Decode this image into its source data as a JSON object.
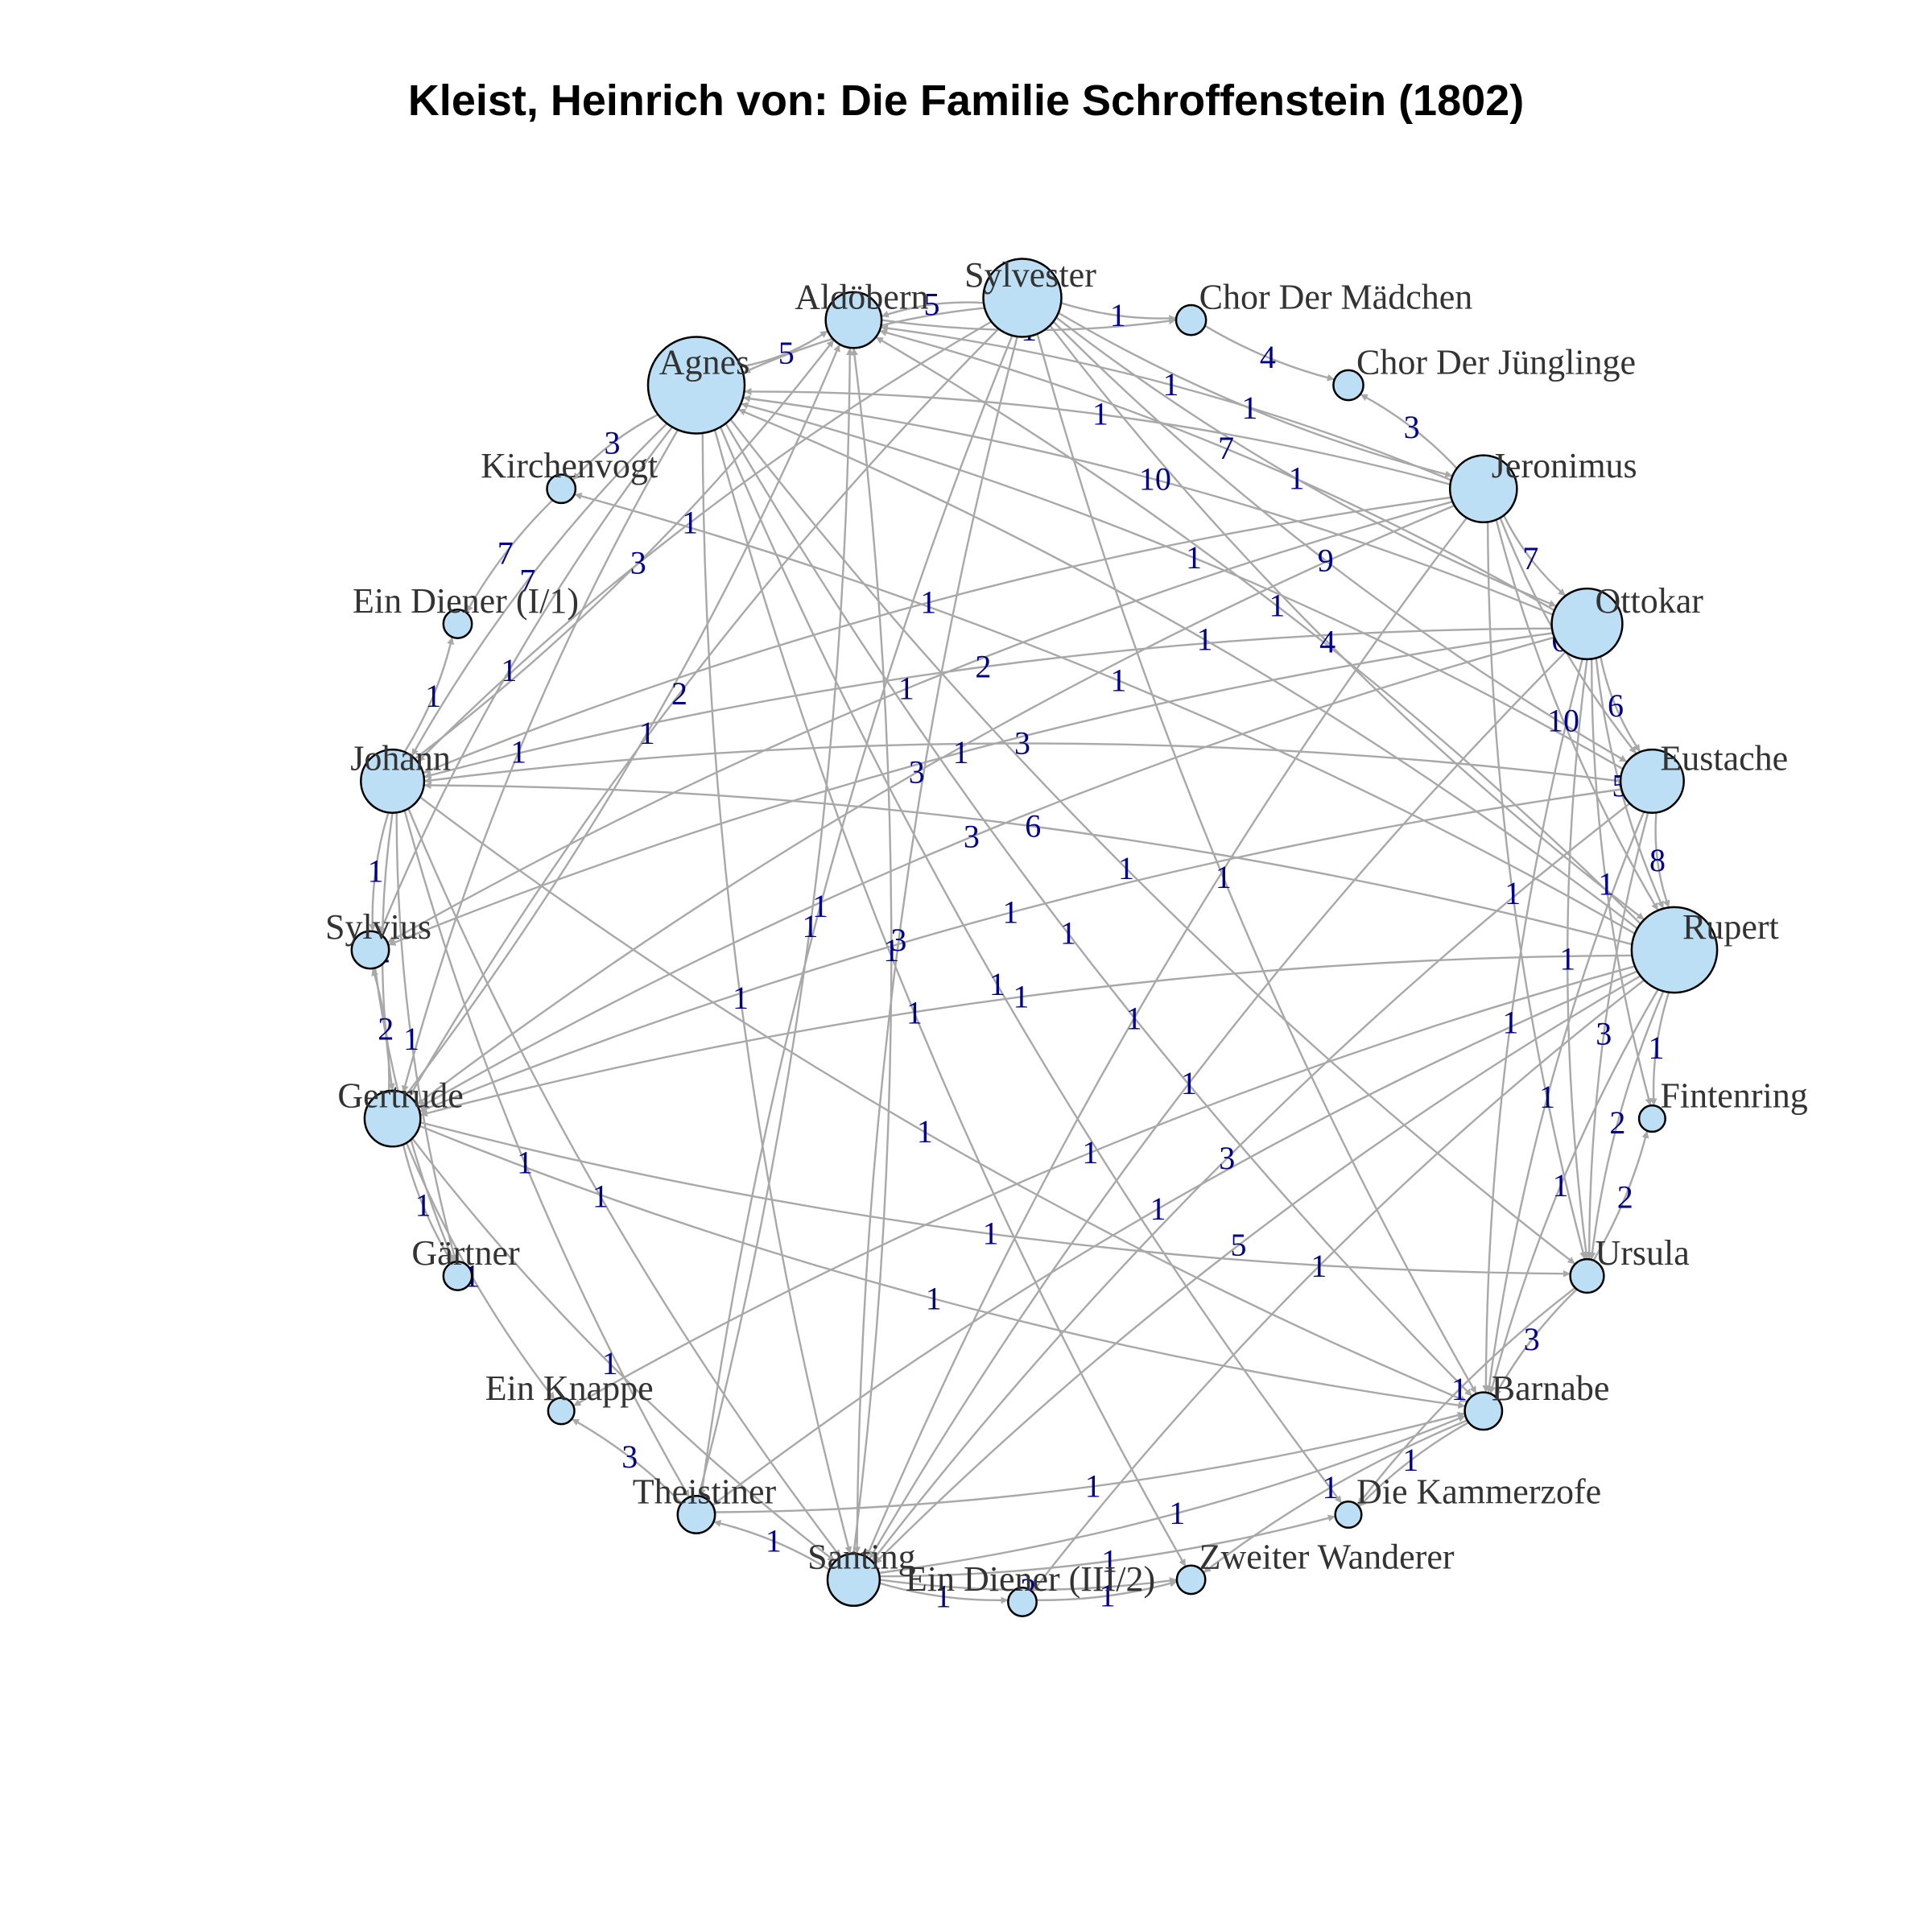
{
  "title": "Kleist, Heinrich von: Die Familie Schroffenstein (1802)",
  "nodes": [
    {
      "id": "sylvester",
      "label": "Sylvester",
      "weight": 0.75
    },
    {
      "id": "chor-maedchen",
      "label": "Chor Der Mädchen",
      "weight": 0.1
    },
    {
      "id": "chor-juenglinge",
      "label": "Chor Der Jünglinge",
      "weight": 0.1
    },
    {
      "id": "jeronimus",
      "label": "Jeronimus",
      "weight": 0.6
    },
    {
      "id": "ottokar",
      "label": "Ottokar",
      "weight": 0.65
    },
    {
      "id": "eustache",
      "label": "Eustache",
      "weight": 0.55
    },
    {
      "id": "rupert",
      "label": "Rupert",
      "weight": 0.85
    },
    {
      "id": "fintenring",
      "label": "Fintenring",
      "weight": 0.05
    },
    {
      "id": "ursula",
      "label": "Ursula",
      "weight": 0.15
    },
    {
      "id": "barnabe",
      "label": "Barnabe",
      "weight": 0.2
    },
    {
      "id": "kammerzofe",
      "label": "Die Kammerzofe",
      "weight": 0.05
    },
    {
      "id": "zweiter-wanderer",
      "label": "Zweiter Wanderer",
      "weight": 0.08
    },
    {
      "id": "diener-iii2",
      "label": "Ein Diener (III/2)",
      "weight": 0.08
    },
    {
      "id": "santing",
      "label": "Santing",
      "weight": 0.4
    },
    {
      "id": "theistiner",
      "label": "Theistiner",
      "weight": 0.2
    },
    {
      "id": "knappe",
      "label": "Ein Knappe",
      "weight": 0.05
    },
    {
      "id": "gaertner",
      "label": "Gärtner",
      "weight": 0.08
    },
    {
      "id": "gertrude",
      "label": "Gertrude",
      "weight": 0.45
    },
    {
      "id": "sylvius",
      "label": "Sylvius",
      "weight": 0.2
    },
    {
      "id": "johann",
      "label": "Johann",
      "weight": 0.55
    },
    {
      "id": "diener-i1",
      "label": "Ein Diener (I/1)",
      "weight": 0.08
    },
    {
      "id": "kirchenvogt",
      "label": "Kirchenvogt",
      "weight": 0.08
    },
    {
      "id": "agnes",
      "label": "Agnes",
      "weight": 1.0
    },
    {
      "id": "aldoebern",
      "label": "Aldöbern",
      "weight": 0.45
    }
  ],
  "edges": [
    [
      "sylvester",
      "jeronimus",
      "1"
    ],
    [
      "sylvester",
      "ottokar",
      "1"
    ],
    [
      "sylvester",
      "rupert",
      "4"
    ],
    [
      "sylvester",
      "agnes",
      "5"
    ],
    [
      "sylvester",
      "gertrude",
      "2"
    ],
    [
      "sylvester",
      "johann",
      "1"
    ],
    [
      "sylvester",
      "theistiner",
      "1"
    ],
    [
      "sylvester",
      "aldoebern",
      "5"
    ],
    [
      "sylvester",
      "santing",
      "3"
    ],
    [
      "sylvester",
      "eustache",
      "9"
    ],
    [
      "sylvester",
      "chor-maedchen",
      "1"
    ],
    [
      "sylvester",
      "barnabe",
      "1"
    ],
    [
      "jeronimus",
      "agnes",
      "1"
    ],
    [
      "jeronimus",
      "ottokar",
      "7"
    ],
    [
      "jeronimus",
      "eustache",
      "6"
    ],
    [
      "jeronimus",
      "rupert",
      "10"
    ],
    [
      "jeronimus",
      "johann",
      "1"
    ],
    [
      "jeronimus",
      "aldoebern",
      "1"
    ],
    [
      "jeronimus",
      "gertrude",
      "3"
    ],
    [
      "jeronimus",
      "santing",
      "1"
    ],
    [
      "jeronimus",
      "sylvius",
      "1"
    ],
    [
      "jeronimus",
      "ursula",
      "1"
    ],
    [
      "jeronimus",
      "chor-juenglinge",
      "3"
    ],
    [
      "ottokar",
      "agnes",
      "10"
    ],
    [
      "ottokar",
      "eustache",
      "6"
    ],
    [
      "ottokar",
      "rupert",
      "5"
    ],
    [
      "ottokar",
      "johann",
      "2"
    ],
    [
      "ottokar",
      "gertrude",
      "3"
    ],
    [
      "ottokar",
      "sylvius",
      "1"
    ],
    [
      "ottokar",
      "barnabe",
      "1"
    ],
    [
      "ottokar",
      "aldoebern",
      "7"
    ],
    [
      "ottokar",
      "santing",
      "1"
    ],
    [
      "ottokar",
      "fintenring",
      "1"
    ],
    [
      "ottokar",
      "ursula",
      "1"
    ],
    [
      "eustache",
      "rupert",
      "8"
    ],
    [
      "eustache",
      "agnes",
      "1"
    ],
    [
      "eustache",
      "johann",
      "3"
    ],
    [
      "eustache",
      "gertrude",
      "1"
    ],
    [
      "eustache",
      "santing",
      "3"
    ],
    [
      "eustache",
      "ursula",
      "3"
    ],
    [
      "eustache",
      "barnabe",
      "1"
    ],
    [
      "rupert",
      "agnes",
      "1"
    ],
    [
      "rupert",
      "johann",
      "6"
    ],
    [
      "rupert",
      "gertrude",
      "1"
    ],
    [
      "rupert",
      "santing",
      "5"
    ],
    [
      "rupert",
      "fintenring",
      "1"
    ],
    [
      "rupert",
      "ursula",
      "2"
    ],
    [
      "rupert",
      "barnabe",
      "1"
    ],
    [
      "rupert",
      "theistiner",
      "1"
    ],
    [
      "rupert",
      "diener-iii2",
      "1"
    ],
    [
      "rupert",
      "knappe",
      "1"
    ],
    [
      "rupert",
      "kirchenvogt",
      "1"
    ],
    [
      "rupert",
      "aldoebern",
      "1"
    ],
    [
      "agnes",
      "johann",
      "7"
    ],
    [
      "agnes",
      "gertrude",
      "1"
    ],
    [
      "agnes",
      "sylvius",
      "1"
    ],
    [
      "agnes",
      "santing",
      "1"
    ],
    [
      "agnes",
      "barnabe",
      "1"
    ],
    [
      "agnes",
      "aldoebern",
      "5"
    ],
    [
      "agnes",
      "kirchenvogt",
      "3"
    ],
    [
      "agnes",
      "ursula",
      "1"
    ],
    [
      "agnes",
      "zweiter-wanderer",
      "1"
    ],
    [
      "agnes",
      "kammerzofe",
      "1"
    ],
    [
      "johann",
      "gertrude",
      "2"
    ],
    [
      "johann",
      "sylvius",
      "1"
    ],
    [
      "johann",
      "santing",
      "1"
    ],
    [
      "johann",
      "theistiner",
      "1"
    ],
    [
      "johann",
      "diener-i1",
      "1"
    ],
    [
      "johann",
      "aldoebern",
      "3"
    ],
    [
      "johann",
      "barnabe",
      "1"
    ],
    [
      "johann",
      "gaertner",
      "1"
    ],
    [
      "gertrude",
      "sylvius",
      "2"
    ],
    [
      "gertrude",
      "santing",
      "1"
    ],
    [
      "gertrude",
      "gaertner",
      "1"
    ],
    [
      "gertrude",
      "knappe",
      "1"
    ],
    [
      "gertrude",
      "ursula",
      "1"
    ],
    [
      "gertrude",
      "barnabe",
      "1"
    ],
    [
      "gertrude",
      "aldoebern",
      "1"
    ],
    [
      "santing",
      "theistiner",
      "1"
    ],
    [
      "santing",
      "diener-iii2",
      "1"
    ],
    [
      "santing",
      "zweiter-wanderer",
      "2"
    ],
    [
      "santing",
      "barnabe",
      "1"
    ],
    [
      "santing",
      "aldoebern",
      "1"
    ],
    [
      "santing",
      "kammerzofe",
      "1"
    ],
    [
      "theistiner",
      "aldoebern",
      "1"
    ],
    [
      "theistiner",
      "barnabe",
      "1"
    ],
    [
      "theistiner",
      "knappe",
      "3"
    ],
    [
      "ursula",
      "barnabe",
      "3"
    ],
    [
      "ursula",
      "fintenring",
      "2"
    ],
    [
      "ursula",
      "kammerzofe",
      "1"
    ],
    [
      "barnabe",
      "zweiter-wanderer",
      "1"
    ],
    [
      "barnabe",
      "kammerzofe",
      "1"
    ],
    [
      "diener-iii2",
      "zweiter-wanderer",
      "1"
    ],
    [
      "kirchenvogt",
      "diener-i1",
      "7"
    ],
    [
      "aldoebern",
      "chor-maedchen",
      "1"
    ],
    [
      "chor-maedchen",
      "chor-juenglinge",
      "4"
    ],
    [
      "sylvius",
      "gaertner",
      "1"
    ]
  ]
}
